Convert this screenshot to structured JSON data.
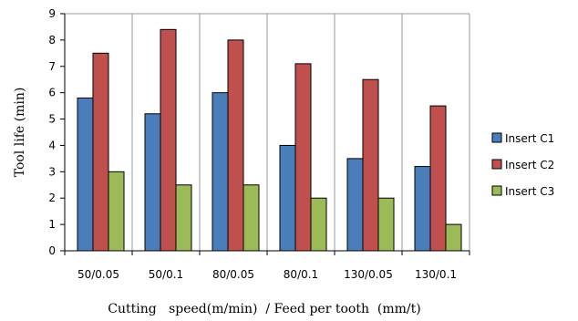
{
  "chart_data": {
    "type": "bar",
    "title": "",
    "xlabel": "Cutting   speed(m/min)  / Feed per tooth  (mm/t)",
    "ylabel": "Tool life  (min)",
    "ylim": [
      0,
      9
    ],
    "yticks": [
      0,
      1,
      2,
      3,
      4,
      5,
      6,
      7,
      8,
      9
    ],
    "grid": "vertical category separators",
    "legend_position": "right",
    "categories": [
      "50/0.05",
      "50/0.1",
      "80/0.05",
      "80/0.1",
      "130/0.05",
      "130/0.1"
    ],
    "series": [
      {
        "name": "Insert C1",
        "color": "#4a7ebb",
        "values": [
          5.8,
          5.2,
          6.0,
          4.0,
          3.5,
          3.2
        ]
      },
      {
        "name": "Insert C2",
        "color": "#c0504d",
        "values": [
          7.5,
          8.4,
          8.0,
          7.1,
          6.5,
          5.5
        ]
      },
      {
        "name": "Insert C3",
        "color": "#9bbb59",
        "values": [
          3.0,
          2.5,
          2.5,
          2.0,
          2.0,
          1.0
        ]
      }
    ]
  }
}
